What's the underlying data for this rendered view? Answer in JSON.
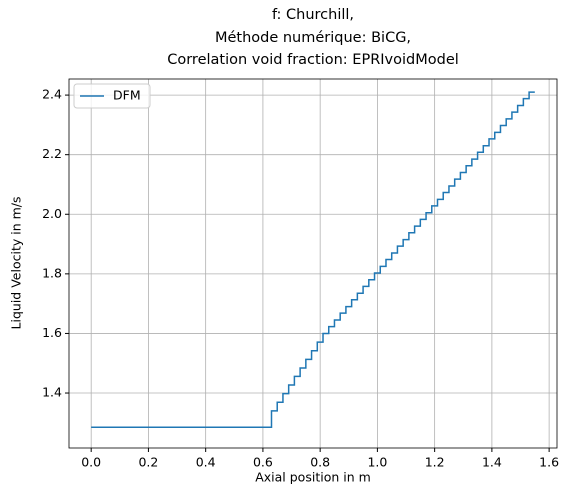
{
  "chart_data": {
    "type": "line",
    "step": "post",
    "title": [
      "f: Churchill,",
      "Méthode numérique: BiCG,",
      "Correlation void fraction: EPRIvoidModel"
    ],
    "xlabel": "Axial position in m",
    "ylabel": "Liquid Velocity in m/s",
    "x": [
      0,
      0.63,
      0.65,
      0.67,
      0.69,
      0.71,
      0.73,
      0.75,
      0.77,
      0.79,
      0.81,
      0.83,
      0.85,
      0.87,
      0.89,
      0.91,
      0.93,
      0.95,
      0.97,
      0.99,
      1.01,
      1.03,
      1.05,
      1.07,
      1.09,
      1.11,
      1.13,
      1.15,
      1.17,
      1.19,
      1.21,
      1.23,
      1.25,
      1.27,
      1.29,
      1.31,
      1.33,
      1.35,
      1.37,
      1.39,
      1.41,
      1.43,
      1.45,
      1.47,
      1.49,
      1.51,
      1.53,
      1.55
    ],
    "series": [
      {
        "name": "DFM",
        "color": "#1f77b4",
        "values": [
          1.285,
          1.34,
          1.369,
          1.398,
          1.427,
          1.456,
          1.484,
          1.513,
          1.542,
          1.571,
          1.6,
          1.623,
          1.645,
          1.668,
          1.69,
          1.713,
          1.735,
          1.758,
          1.78,
          1.803,
          1.825,
          1.848,
          1.87,
          1.893,
          1.915,
          1.938,
          1.96,
          1.983,
          2.005,
          2.028,
          2.05,
          2.073,
          2.095,
          2.118,
          2.14,
          2.163,
          2.185,
          2.208,
          2.23,
          2.253,
          2.275,
          2.298,
          2.32,
          2.343,
          2.365,
          2.388,
          2.41,
          2.41
        ]
      }
    ],
    "xlim": [
      -0.0775,
      1.6275
    ],
    "xticks": [
      {
        "value": 0,
        "label": "0.0"
      },
      0.2,
      0.4,
      0.6,
      0.8,
      {
        "value": 1,
        "label": "1.0"
      },
      1.2,
      1.4,
      1.6
    ],
    "ylim": [
      1.2155,
      2.454
    ],
    "yticks": [
      1.4,
      1.6,
      1.8,
      {
        "value": 2,
        "label": "2.0"
      },
      2.2,
      2.4
    ],
    "grid": true,
    "legend": "upper left"
  }
}
